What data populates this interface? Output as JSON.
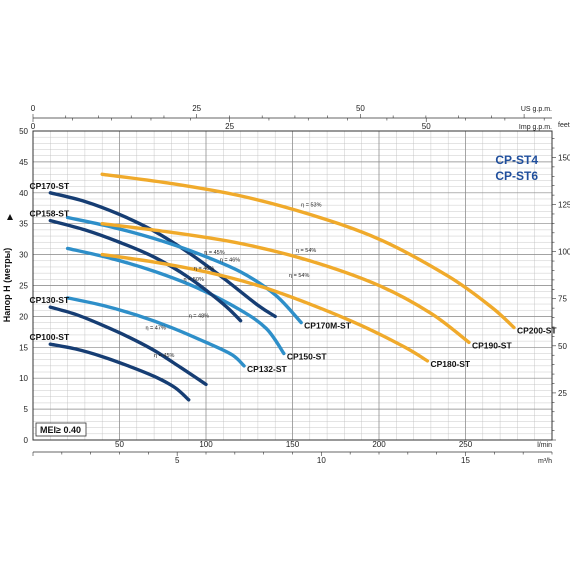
{
  "chart_data": {
    "type": "line",
    "title_lines": [
      "CP-ST4",
      "CP-ST6"
    ],
    "ylabel": "Напор H (метры)",
    "ylim": [
      0,
      50
    ],
    "y_ticks": [
      0,
      5,
      10,
      15,
      20,
      25,
      30,
      35,
      40,
      45,
      50
    ],
    "xlim": [
      0,
      300
    ],
    "x_ticks": [
      50,
      100,
      150,
      200,
      250
    ],
    "x_unit": "l/min",
    "x2_ticks": [
      5,
      10,
      15
    ],
    "x2_unit": "m³/h",
    "top1_ticks": [
      0,
      25,
      50
    ],
    "top1_unit": "US g.p.m.",
    "top2_ticks": [
      0,
      25,
      50
    ],
    "top2_unit": "Imp g.p.m.",
    "right_ticks": [
      25,
      50,
      75,
      100,
      125,
      150
    ],
    "right_unit": "feet",
    "mei": "MEI≥ 0.40",
    "series": [
      {
        "name": "CP100-ST",
        "color": "#163d73",
        "points": [
          [
            10,
            15.5
          ],
          [
            25,
            14.7
          ],
          [
            40,
            13.5
          ],
          [
            55,
            12
          ],
          [
            70,
            10.3
          ],
          [
            82,
            8.5
          ],
          [
            90,
            6.5
          ]
        ],
        "label_anchor": [
          10,
          15.5
        ],
        "label_side": "left"
      },
      {
        "name": "CP130-ST",
        "color": "#163d73",
        "points": [
          [
            10,
            21.5
          ],
          [
            25,
            20.3
          ],
          [
            40,
            18.6
          ],
          [
            55,
            16.7
          ],
          [
            70,
            14.5
          ],
          [
            85,
            11.8
          ],
          [
            100,
            9
          ]
        ],
        "label_anchor": [
          10,
          21.5
        ],
        "label_side": "left"
      },
      {
        "name": "CP132-ST",
        "color": "#2e8fc9",
        "points": [
          [
            20,
            23
          ],
          [
            40,
            21.8
          ],
          [
            60,
            20.2
          ],
          [
            80,
            18.2
          ],
          [
            100,
            15.8
          ],
          [
            115,
            13.8
          ],
          [
            122,
            12
          ]
        ],
        "label_anchor": [
          122,
          12
        ],
        "label_side": "right"
      },
      {
        "name": "CP150-ST",
        "color": "#2e8fc9",
        "points": [
          [
            20,
            31
          ],
          [
            45,
            29.4
          ],
          [
            70,
            27.3
          ],
          [
            95,
            24.6
          ],
          [
            120,
            21
          ],
          [
            135,
            18
          ],
          [
            145,
            14
          ]
        ],
        "label_anchor": [
          145,
          14
        ],
        "label_side": "right"
      },
      {
        "name": "CP158-ST",
        "color": "#163d73",
        "points": [
          [
            10,
            35.5
          ],
          [
            30,
            34
          ],
          [
            50,
            32
          ],
          [
            70,
            29.6
          ],
          [
            90,
            26.3
          ],
          [
            110,
            22
          ],
          [
            120,
            19.3
          ]
        ],
        "label_anchor": [
          10,
          35.5
        ],
        "label_side": "left"
      },
      {
        "name": "CP170-ST",
        "color": "#163d73",
        "points": [
          [
            10,
            40
          ],
          [
            30,
            38.6
          ],
          [
            50,
            36.5
          ],
          [
            70,
            33.8
          ],
          [
            90,
            30.3
          ],
          [
            110,
            26.2
          ],
          [
            130,
            21.8
          ],
          [
            140,
            20
          ]
        ],
        "label_anchor": [
          10,
          40
        ],
        "label_side": "left"
      },
      {
        "name": "CP170M-ST",
        "color": "#2e8fc9",
        "points": [
          [
            20,
            36
          ],
          [
            45,
            34.5
          ],
          [
            70,
            32.6
          ],
          [
            95,
            30.2
          ],
          [
            120,
            27.2
          ],
          [
            140,
            23.5
          ],
          [
            155,
            19
          ]
        ],
        "label_anchor": [
          155,
          19
        ],
        "label_side": "right"
      },
      {
        "name": "CP180-ST",
        "color": "#f0aa2b",
        "points": [
          [
            40,
            30
          ],
          [
            70,
            28.8
          ],
          [
            100,
            27.2
          ],
          [
            130,
            25
          ],
          [
            160,
            22
          ],
          [
            190,
            18.5
          ],
          [
            215,
            15
          ],
          [
            228,
            12.8
          ]
        ],
        "label_anchor": [
          228,
          12.8
        ],
        "label_side": "right"
      },
      {
        "name": "CP190-ST",
        "color": "#f0aa2b",
        "points": [
          [
            40,
            35
          ],
          [
            80,
            33.6
          ],
          [
            120,
            31.8
          ],
          [
            160,
            29
          ],
          [
            200,
            25
          ],
          [
            230,
            20.5
          ],
          [
            252,
            15.8
          ]
        ],
        "label_anchor": [
          252,
          15.8
        ],
        "label_side": "right"
      },
      {
        "name": "CP200-ST",
        "color": "#f0aa2b",
        "points": [
          [
            40,
            43
          ],
          [
            80,
            41.5
          ],
          [
            120,
            39.5
          ],
          [
            160,
            36.5
          ],
          [
            200,
            32.5
          ],
          [
            240,
            26.5
          ],
          [
            265,
            21.5
          ],
          [
            278,
            18.2
          ]
        ],
        "label_anchor": [
          278,
          18.2
        ],
        "label_side": "right"
      }
    ],
    "efficiency_labels": [
      {
        "text": "η = 45%",
        "x": 70,
        "y": 13.4
      },
      {
        "text": "η = 47%",
        "x": 65,
        "y": 17.9
      },
      {
        "text": "η = 48%",
        "x": 90,
        "y": 19.8
      },
      {
        "text": "η = 50%",
        "x": 87,
        "y": 25.7
      },
      {
        "text": "η = 46%",
        "x": 93,
        "y": 27.5
      },
      {
        "text": "η = 45%",
        "x": 99,
        "y": 30.1
      },
      {
        "text": "η = 46%",
        "x": 108,
        "y": 28.9
      },
      {
        "text": "η = 54%",
        "x": 148,
        "y": 26.4
      },
      {
        "text": "η = 54%",
        "x": 152,
        "y": 30.4
      },
      {
        "text": "η = 53%",
        "x": 155,
        "y": 37.8
      }
    ]
  }
}
